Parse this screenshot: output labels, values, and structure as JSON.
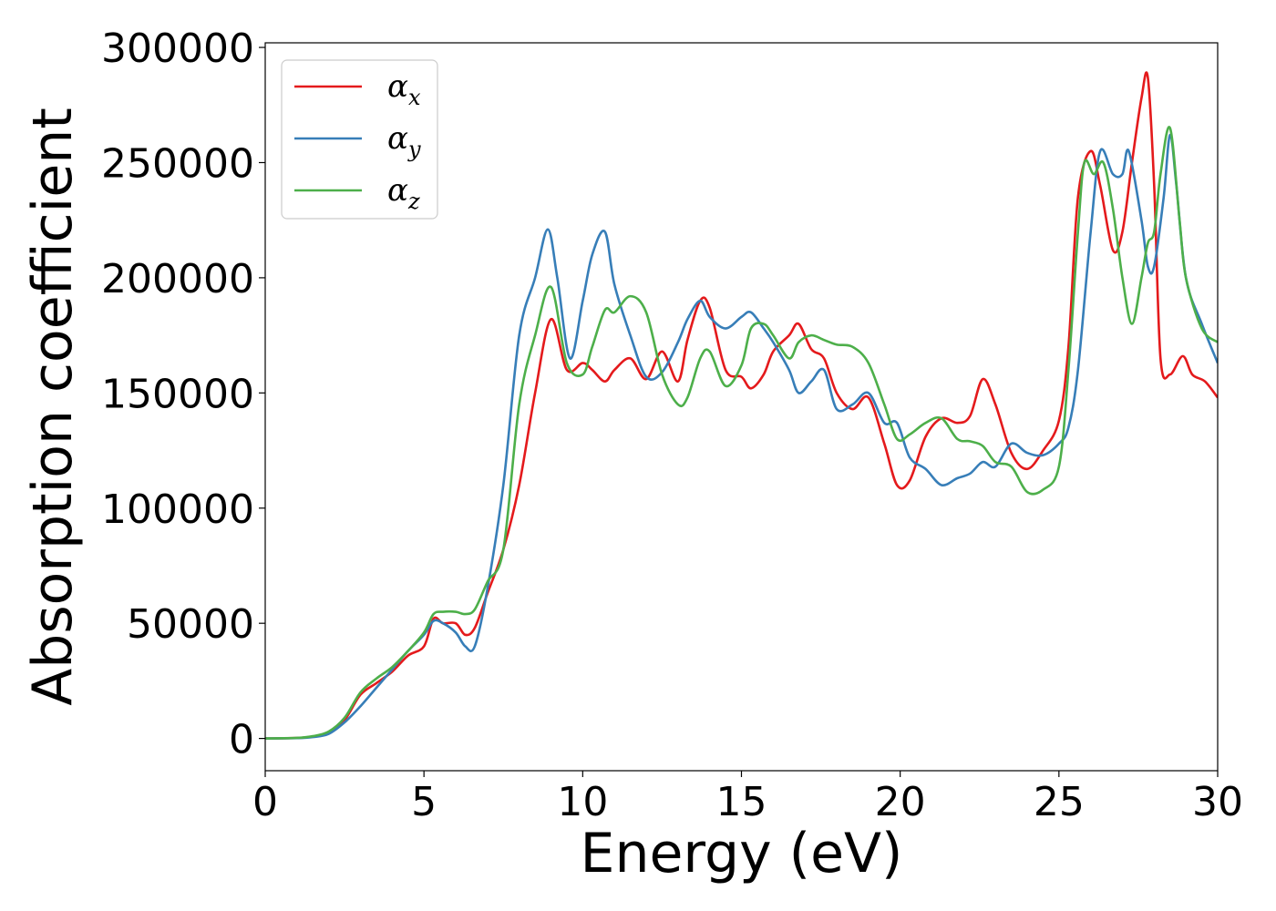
{
  "chart_data": {
    "type": "line",
    "xlabel": "Energy (eV)",
    "ylabel": "Absorption coefficient",
    "xlim": [
      0,
      30
    ],
    "ylim": [
      -14000,
      302000
    ],
    "xticks": [
      0,
      5,
      10,
      15,
      20,
      25,
      30
    ],
    "yticks": [
      0,
      50000,
      100000,
      150000,
      200000,
      250000,
      300000
    ],
    "grid": false,
    "legend_position": "top-left",
    "series": [
      {
        "name": "α",
        "subscript": "x",
        "color": "#e41a1c",
        "x": [
          0,
          1,
          1.5,
          2,
          2.5,
          3,
          3.5,
          4,
          4.5,
          5,
          5.3,
          5.6,
          6,
          6.3,
          6.6,
          7,
          7.5,
          8,
          8.5,
          9,
          9.5,
          10,
          10.3,
          10.7,
          11,
          11.5,
          12,
          12.5,
          13,
          13.3,
          13.7,
          14,
          14.5,
          15,
          15.3,
          15.7,
          16,
          16.5,
          16.8,
          17.2,
          17.6,
          18,
          18.5,
          19,
          19.5,
          19.9,
          20.3,
          20.8,
          21.3,
          21.8,
          22.2,
          22.6,
          23,
          23.5,
          24,
          24.5,
          25,
          25.3,
          25.6,
          26,
          26.3,
          26.7,
          27,
          27.3,
          27.6,
          27.8,
          28,
          28.2,
          28.5,
          28.9,
          29.2,
          29.6,
          30
        ],
        "values": [
          0,
          200,
          800,
          2500,
          8000,
          19000,
          24000,
          29000,
          36000,
          40000,
          52000,
          50000,
          50000,
          45000,
          48000,
          63000,
          82000,
          110000,
          150000,
          182000,
          160000,
          163000,
          160000,
          155000,
          160000,
          165000,
          156000,
          168000,
          155000,
          173000,
          190000,
          187000,
          160000,
          157000,
          152000,
          158000,
          168000,
          175000,
          180000,
          169000,
          165000,
          150000,
          143000,
          148000,
          128000,
          110000,
          112000,
          131000,
          139000,
          137000,
          140000,
          156000,
          145000,
          124000,
          117000,
          125000,
          138000,
          170000,
          235000,
          255000,
          240000,
          212000,
          220000,
          250000,
          278000,
          287000,
          240000,
          165000,
          158000,
          166000,
          158000,
          155000,
          148000
        ]
      },
      {
        "name": "α",
        "subscript": "y",
        "color": "#377eb8",
        "x": [
          0,
          1,
          1.5,
          2,
          2.5,
          3,
          3.5,
          4,
          4.5,
          5,
          5.3,
          5.6,
          6,
          6.3,
          6.6,
          7,
          7.5,
          8,
          8.5,
          8.9,
          9.2,
          9.6,
          10,
          10.3,
          10.7,
          11,
          11.5,
          12,
          12.5,
          13,
          13.3,
          13.7,
          14,
          14.5,
          15,
          15.3,
          15.7,
          16,
          16.5,
          16.8,
          17.2,
          17.6,
          18,
          18.5,
          19,
          19.5,
          19.9,
          20.3,
          20.8,
          21.3,
          21.8,
          22.2,
          22.6,
          23,
          23.5,
          24,
          24.5,
          25,
          25.3,
          25.6,
          26,
          26.3,
          26.7,
          27,
          27.2,
          27.6,
          27.8,
          28,
          28.3,
          28.5,
          28.7,
          29,
          29.5,
          30
        ],
        "values": [
          0,
          150,
          600,
          2000,
          7000,
          14000,
          22000,
          30000,
          38000,
          45000,
          51000,
          50000,
          46000,
          40000,
          40000,
          65000,
          110000,
          175000,
          200000,
          221000,
          200000,
          165000,
          190000,
          210000,
          220000,
          197000,
          175000,
          157000,
          159000,
          172000,
          182000,
          190000,
          183000,
          178000,
          183000,
          185000,
          178000,
          172000,
          160000,
          150000,
          155000,
          160000,
          143000,
          145000,
          150000,
          137000,
          137000,
          122000,
          117000,
          110000,
          113000,
          115000,
          120000,
          118000,
          128000,
          124000,
          123000,
          128000,
          135000,
          160000,
          220000,
          255000,
          245000,
          245000,
          255000,
          225000,
          205000,
          205000,
          235000,
          262000,
          240000,
          200000,
          180000,
          163000
        ]
      },
      {
        "name": "α",
        "subscript": "z",
        "color": "#4daf4a",
        "x": [
          0,
          1,
          1.5,
          2,
          2.5,
          3,
          3.5,
          4,
          4.5,
          5,
          5.3,
          5.6,
          6,
          6.3,
          6.6,
          7,
          7.5,
          8,
          8.5,
          9,
          9.5,
          10,
          10.3,
          10.7,
          11,
          11.5,
          12,
          12.5,
          13,
          13.3,
          13.7,
          14,
          14.5,
          15,
          15.3,
          15.7,
          16,
          16.5,
          16.8,
          17.2,
          17.6,
          18,
          18.5,
          19,
          19.5,
          19.9,
          20.3,
          20.8,
          21.3,
          21.8,
          22.2,
          22.6,
          23,
          23.5,
          24,
          24.5,
          25,
          25.3,
          25.6,
          25.8,
          26.1,
          26.4,
          26.7,
          27,
          27.3,
          27.6,
          27.8,
          28,
          28.2,
          28.5,
          28.8,
          29,
          29.5,
          30
        ],
        "values": [
          0,
          250,
          1000,
          3000,
          9000,
          20000,
          26000,
          31000,
          38000,
          46000,
          54000,
          55000,
          55000,
          54000,
          56000,
          68000,
          82000,
          145000,
          175000,
          196000,
          163000,
          158000,
          170000,
          186000,
          185000,
          192000,
          185000,
          158000,
          145000,
          148000,
          165000,
          168000,
          153000,
          162000,
          178000,
          180000,
          175000,
          165000,
          172000,
          175000,
          173000,
          171000,
          170000,
          163000,
          145000,
          130000,
          132000,
          137000,
          139000,
          130000,
          129000,
          127000,
          120000,
          118000,
          107000,
          108000,
          118000,
          160000,
          220000,
          250000,
          245000,
          250000,
          230000,
          200000,
          180000,
          200000,
          215000,
          220000,
          245000,
          265000,
          225000,
          200000,
          178000,
          172000
        ]
      }
    ]
  }
}
